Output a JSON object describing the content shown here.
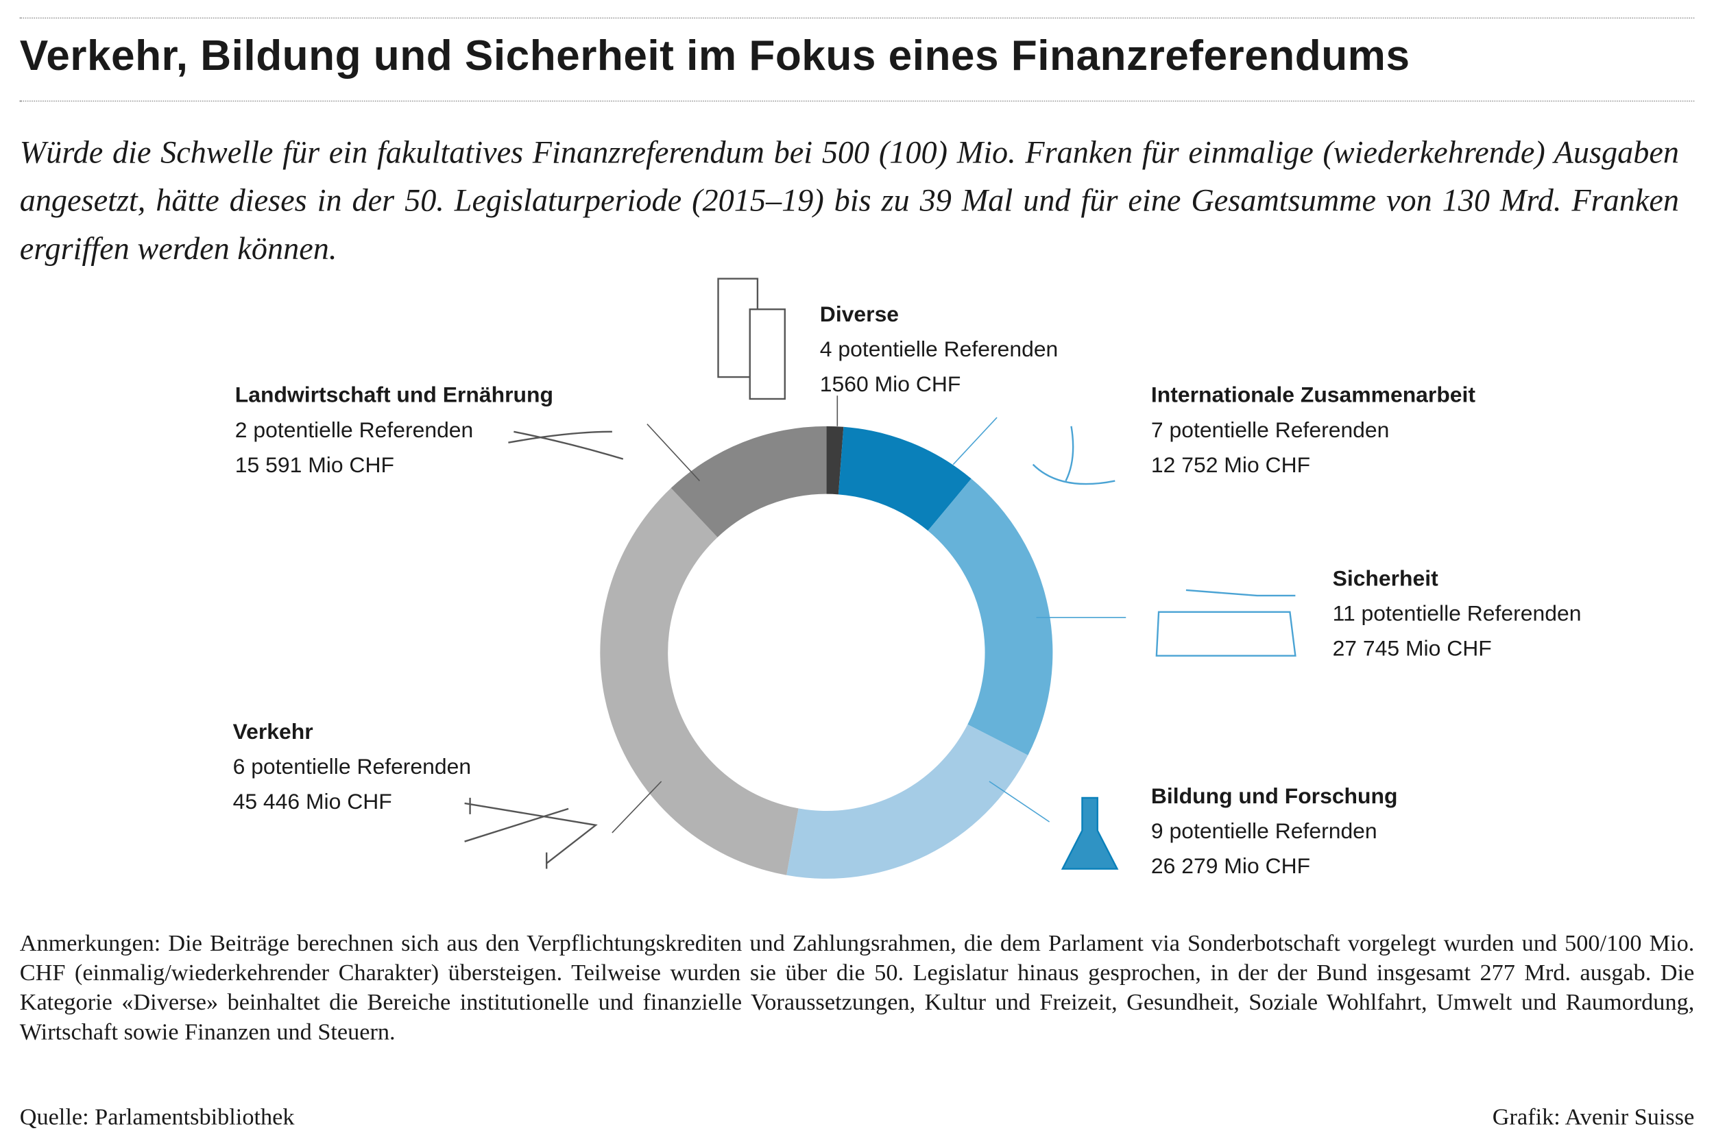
{
  "chart_data": {
    "type": "donut",
    "title": "Verkehr, Bildung und Sicherheit im Fokus eines Finanzreferendums",
    "subtitle": "Würde die Schwelle für ein fakultatives Finanzreferendum bei 500 (100) Mio. Franken für einmalige (wiederkehrende) Ausgaben angesetzt, hätte dieses in der 50. Legislaturperiode (2015–19) bis zu 39 Mal und für eine Gesamtsumme von 130 Mrd. Franken ergriffen werden können.",
    "categories": [
      "Diverse",
      "Internationale Zusammenarbeit",
      "Sicherheit",
      "Bildung und Forschung",
      "Verkehr",
      "Landwirtschaft und Ernährung"
    ],
    "referenda_labels": [
      "4 potentielle Referenden",
      "7 potentielle Referenden",
      "11 potentielle Referenden",
      "9 potentielle Refernden",
      "6 potentielle Referenden",
      "2 potentielle Referenden"
    ],
    "values": [
      1560,
      12752,
      27745,
      26279,
      45446,
      15591
    ],
    "value_labels": [
      "1560 Mio CHF",
      "12 752 Mio CHF",
      "27 745 Mio CHF",
      "26 279 Mio CHF",
      "45 446 Mio CHF",
      "15 591 Mio CHF"
    ],
    "colors": [
      "#3d3d3d",
      "#0a80ba",
      "#66b2d9",
      "#a5cce6",
      "#b3b3b3",
      "#878787"
    ],
    "notes": "Anmerkungen: Die Beiträge berechnen sich aus den Verpflichtungskrediten und Zahlungsrahmen, die dem Parlament via Sonderbotschaft vorgelegt wurden und 500/100 Mio. CHF (einmalig/wiederkehrender Charakter) übersteigen. Teilweise wurden sie über die 50. Legislatur hinaus gesprochen, in der der Bund insgesamt 277 Mrd. ausgab. Die Kategorie «Diverse» beinhaltet die Bereiche institutionelle und finanzielle Voraussetzungen, Kultur und Freizeit, Gesundheit, Soziale Wohlfahrt, Umwelt und Raumordung, Wirtschaft sowie Finanzen und Steuern.",
    "source": "Quelle: Parlamentsbibliothek",
    "credit": "Grafik: Avenir Suisse"
  }
}
